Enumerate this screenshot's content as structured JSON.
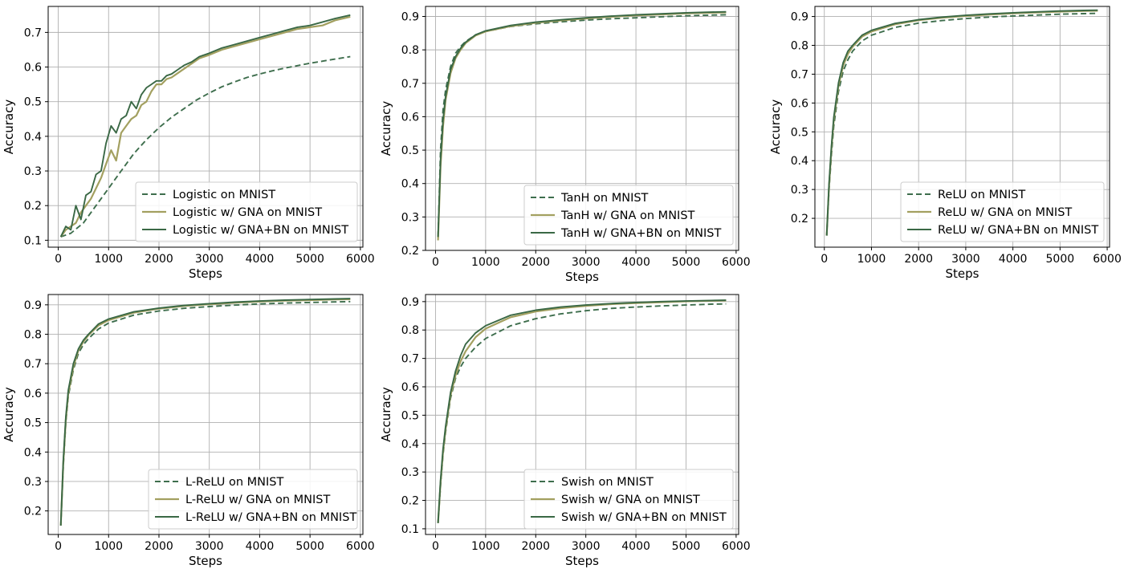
{
  "figure": {
    "colors": {
      "baseline": "#3e6e4d",
      "gna": "#a3a060",
      "gna_bn": "#3a6845",
      "grid": "#b0b0b0"
    }
  },
  "chart_data": [
    {
      "type": "line",
      "xlabel": "Steps",
      "ylabel": "Accuracy",
      "xlim": [
        -200,
        6050
      ],
      "ylim": [
        0.08,
        0.775
      ],
      "xticks": [
        0,
        1000,
        2000,
        3000,
        4000,
        5000,
        6000
      ],
      "yticks": [
        0.1,
        0.2,
        0.3,
        0.4,
        0.5,
        0.6,
        0.7
      ],
      "grid": true,
      "legend_position": "lower-right",
      "series": [
        {
          "name": "Logistic on MNIST",
          "style": "dashed",
          "color": "baseline",
          "x": [
            50,
            250,
            500,
            750,
            1000,
            1250,
            1500,
            1750,
            2000,
            2250,
            2500,
            2750,
            3000,
            3250,
            3500,
            3750,
            4000,
            4250,
            4500,
            4750,
            5000,
            5250,
            5500,
            5800
          ],
          "y": [
            0.11,
            0.12,
            0.15,
            0.2,
            0.25,
            0.3,
            0.35,
            0.39,
            0.425,
            0.455,
            0.48,
            0.505,
            0.525,
            0.543,
            0.557,
            0.57,
            0.58,
            0.589,
            0.597,
            0.604,
            0.611,
            0.617,
            0.623,
            0.63
          ]
        },
        {
          "name": "Logistic w/ GNA on MNIST",
          "style": "solid",
          "color": "gna",
          "x": [
            50,
            150,
            250,
            350,
            450,
            550,
            650,
            750,
            850,
            950,
            1050,
            1150,
            1250,
            1350,
            1450,
            1550,
            1650,
            1750,
            1850,
            1950,
            2050,
            2150,
            2250,
            2350,
            2500,
            2650,
            2800,
            3000,
            3250,
            3500,
            3750,
            4000,
            4250,
            4500,
            4750,
            5000,
            5250,
            5500,
            5800
          ],
          "y": [
            0.11,
            0.13,
            0.14,
            0.15,
            0.18,
            0.2,
            0.22,
            0.25,
            0.28,
            0.32,
            0.36,
            0.33,
            0.41,
            0.43,
            0.45,
            0.46,
            0.49,
            0.5,
            0.53,
            0.55,
            0.55,
            0.565,
            0.57,
            0.58,
            0.595,
            0.61,
            0.625,
            0.635,
            0.65,
            0.66,
            0.67,
            0.68,
            0.69,
            0.7,
            0.71,
            0.715,
            0.72,
            0.735,
            0.745
          ]
        },
        {
          "name": "Logistic w/ GNA+BN on MNIST",
          "style": "solid",
          "color": "gna_bn",
          "x": [
            50,
            150,
            250,
            350,
            450,
            550,
            650,
            750,
            850,
            950,
            1050,
            1150,
            1250,
            1350,
            1450,
            1550,
            1650,
            1750,
            1850,
            1950,
            2050,
            2150,
            2250,
            2350,
            2500,
            2650,
            2800,
            3000,
            3250,
            3500,
            3750,
            4000,
            4250,
            4500,
            4750,
            5000,
            5250,
            5500,
            5800
          ],
          "y": [
            0.11,
            0.14,
            0.13,
            0.2,
            0.16,
            0.23,
            0.24,
            0.29,
            0.3,
            0.38,
            0.43,
            0.41,
            0.45,
            0.46,
            0.5,
            0.48,
            0.52,
            0.54,
            0.55,
            0.56,
            0.56,
            0.575,
            0.58,
            0.59,
            0.605,
            0.615,
            0.63,
            0.64,
            0.655,
            0.665,
            0.675,
            0.685,
            0.695,
            0.705,
            0.715,
            0.72,
            0.73,
            0.74,
            0.75
          ]
        }
      ]
    },
    {
      "type": "line",
      "xlabel": "Steps",
      "ylabel": "Accuracy",
      "xlim": [
        -200,
        6050
      ],
      "ylim": [
        0.2,
        0.93
      ],
      "xticks": [
        0,
        1000,
        2000,
        3000,
        4000,
        5000,
        6000
      ],
      "yticks": [
        0.2,
        0.3,
        0.4,
        0.5,
        0.6,
        0.7,
        0.8,
        0.9
      ],
      "grid": true,
      "legend_position": "lower-right",
      "series": [
        {
          "name": "TanH on MNIST",
          "style": "dashed",
          "color": "baseline",
          "x": [
            50,
            100,
            150,
            200,
            300,
            400,
            500,
            600,
            800,
            1000,
            1500,
            2000,
            2500,
            3000,
            3500,
            4000,
            4500,
            5000,
            5500,
            5800
          ],
          "y": [
            0.24,
            0.5,
            0.62,
            0.68,
            0.75,
            0.79,
            0.81,
            0.825,
            0.845,
            0.855,
            0.87,
            0.878,
            0.884,
            0.889,
            0.893,
            0.896,
            0.899,
            0.902,
            0.904,
            0.905
          ]
        },
        {
          "name": "TanH w/ GNA on MNIST",
          "style": "solid",
          "color": "gna",
          "x": [
            50,
            100,
            150,
            200,
            300,
            400,
            500,
            600,
            800,
            1000,
            1500,
            2000,
            2500,
            3000,
            3500,
            4000,
            4500,
            5000,
            5500,
            5800
          ],
          "y": [
            0.23,
            0.45,
            0.57,
            0.65,
            0.73,
            0.775,
            0.8,
            0.82,
            0.843,
            0.855,
            0.871,
            0.881,
            0.888,
            0.894,
            0.899,
            0.903,
            0.906,
            0.909,
            0.911,
            0.912
          ]
        },
        {
          "name": "TanH w/ GNA+BN on MNIST",
          "style": "solid",
          "color": "gna_bn",
          "x": [
            50,
            100,
            150,
            200,
            300,
            400,
            500,
            600,
            800,
            1000,
            1500,
            2000,
            2500,
            3000,
            3500,
            4000,
            4500,
            5000,
            5500,
            5800
          ],
          "y": [
            0.24,
            0.47,
            0.59,
            0.66,
            0.74,
            0.78,
            0.805,
            0.823,
            0.845,
            0.857,
            0.873,
            0.883,
            0.89,
            0.896,
            0.901,
            0.905,
            0.908,
            0.911,
            0.913,
            0.914
          ]
        }
      ]
    },
    {
      "type": "line",
      "xlabel": "Steps",
      "ylabel": "Accuracy",
      "xlim": [
        -200,
        6050
      ],
      "ylim": [
        0.1,
        0.935
      ],
      "xticks": [
        0,
        1000,
        2000,
        3000,
        4000,
        5000,
        6000
      ],
      "yticks": [
        0.2,
        0.3,
        0.4,
        0.5,
        0.6,
        0.7,
        0.8,
        0.9
      ],
      "grid": true,
      "legend_position": "lower-right",
      "series": [
        {
          "name": "ReLU on MNIST",
          "style": "dashed",
          "color": "baseline",
          "x": [
            50,
            100,
            150,
            200,
            300,
            400,
            500,
            600,
            800,
            1000,
            1500,
            2000,
            2500,
            3000,
            3500,
            4000,
            4500,
            5000,
            5500,
            5800
          ],
          "y": [
            0.14,
            0.3,
            0.42,
            0.52,
            0.64,
            0.71,
            0.75,
            0.78,
            0.815,
            0.835,
            0.862,
            0.877,
            0.886,
            0.893,
            0.898,
            0.902,
            0.905,
            0.908,
            0.91,
            0.911
          ]
        },
        {
          "name": "ReLU w/ GNA on MNIST",
          "style": "solid",
          "color": "gna",
          "x": [
            50,
            100,
            150,
            200,
            300,
            400,
            500,
            600,
            800,
            1000,
            1500,
            2000,
            2500,
            3000,
            3500,
            4000,
            4500,
            5000,
            5500,
            5800
          ],
          "y": [
            0.14,
            0.31,
            0.44,
            0.54,
            0.66,
            0.73,
            0.77,
            0.795,
            0.83,
            0.848,
            0.873,
            0.887,
            0.896,
            0.902,
            0.907,
            0.911,
            0.914,
            0.917,
            0.919,
            0.92
          ]
        },
        {
          "name": "ReLU w/ GNA+BN on MNIST",
          "style": "solid",
          "color": "gna_bn",
          "x": [
            50,
            100,
            150,
            200,
            300,
            400,
            500,
            600,
            800,
            1000,
            1500,
            2000,
            2500,
            3000,
            3500,
            4000,
            4500,
            5000,
            5500,
            5800
          ],
          "y": [
            0.14,
            0.32,
            0.45,
            0.55,
            0.67,
            0.74,
            0.78,
            0.8,
            0.835,
            0.852,
            0.876,
            0.889,
            0.898,
            0.904,
            0.909,
            0.913,
            0.916,
            0.919,
            0.921,
            0.922
          ]
        }
      ]
    },
    {
      "type": "line",
      "xlabel": "Steps",
      "ylabel": "Accuracy",
      "xlim": [
        -200,
        6050
      ],
      "ylim": [
        0.12,
        0.935
      ],
      "xticks": [
        0,
        1000,
        2000,
        3000,
        4000,
        5000,
        6000
      ],
      "yticks": [
        0.2,
        0.3,
        0.4,
        0.5,
        0.6,
        0.7,
        0.8,
        0.9
      ],
      "grid": true,
      "legend_position": "lower-right",
      "series": [
        {
          "name": "L-ReLU on MNIST",
          "style": "dashed",
          "color": "baseline",
          "x": [
            50,
            100,
            150,
            200,
            300,
            400,
            500,
            600,
            800,
            1000,
            1500,
            2000,
            2500,
            3000,
            3500,
            4000,
            4500,
            5000,
            5500,
            5800
          ],
          "y": [
            0.15,
            0.35,
            0.5,
            0.59,
            0.68,
            0.735,
            0.765,
            0.785,
            0.818,
            0.838,
            0.865,
            0.879,
            0.888,
            0.894,
            0.899,
            0.903,
            0.906,
            0.908,
            0.91,
            0.911
          ]
        },
        {
          "name": "L-ReLU w/ GNA on MNIST",
          "style": "solid",
          "color": "gna",
          "x": [
            50,
            100,
            150,
            200,
            300,
            400,
            500,
            600,
            800,
            1000,
            1500,
            2000,
            2500,
            3000,
            3500,
            4000,
            4500,
            5000,
            5500,
            5800
          ],
          "y": [
            0.15,
            0.36,
            0.51,
            0.6,
            0.69,
            0.745,
            0.775,
            0.797,
            0.83,
            0.848,
            0.873,
            0.887,
            0.896,
            0.902,
            0.907,
            0.911,
            0.914,
            0.916,
            0.918,
            0.919
          ]
        },
        {
          "name": "L-ReLU w/ GNA+BN on MNIST",
          "style": "solid",
          "color": "gna_bn",
          "x": [
            50,
            100,
            150,
            200,
            300,
            400,
            500,
            600,
            800,
            1000,
            1500,
            2000,
            2500,
            3000,
            3500,
            4000,
            4500,
            5000,
            5500,
            5800
          ],
          "y": [
            0.15,
            0.37,
            0.52,
            0.61,
            0.7,
            0.75,
            0.78,
            0.8,
            0.835,
            0.852,
            0.876,
            0.889,
            0.898,
            0.904,
            0.909,
            0.913,
            0.916,
            0.918,
            0.92,
            0.921
          ]
        }
      ]
    },
    {
      "type": "line",
      "xlabel": "Steps",
      "ylabel": "Accuracy",
      "xlim": [
        -200,
        6050
      ],
      "ylim": [
        0.08,
        0.925
      ],
      "xticks": [
        0,
        1000,
        2000,
        3000,
        4000,
        5000,
        6000
      ],
      "yticks": [
        0.1,
        0.2,
        0.3,
        0.4,
        0.5,
        0.6,
        0.7,
        0.8,
        0.9
      ],
      "grid": true,
      "legend_position": "lower-right",
      "series": [
        {
          "name": "Swish on MNIST",
          "style": "dashed",
          "color": "baseline",
          "x": [
            50,
            100,
            150,
            200,
            300,
            400,
            500,
            600,
            800,
            1000,
            1500,
            2000,
            2500,
            3000,
            3500,
            4000,
            4500,
            5000,
            5500,
            5800
          ],
          "y": [
            0.12,
            0.25,
            0.36,
            0.44,
            0.56,
            0.63,
            0.67,
            0.7,
            0.74,
            0.77,
            0.815,
            0.84,
            0.857,
            0.868,
            0.876,
            0.881,
            0.885,
            0.888,
            0.891,
            0.892
          ]
        },
        {
          "name": "Swish w/ GNA on MNIST",
          "style": "solid",
          "color": "gna",
          "x": [
            50,
            100,
            150,
            200,
            300,
            400,
            500,
            600,
            800,
            1000,
            1500,
            2000,
            2500,
            3000,
            3500,
            4000,
            4500,
            5000,
            5500,
            5800
          ],
          "y": [
            0.12,
            0.26,
            0.37,
            0.45,
            0.57,
            0.64,
            0.69,
            0.725,
            0.775,
            0.805,
            0.845,
            0.865,
            0.877,
            0.885,
            0.891,
            0.895,
            0.898,
            0.901,
            0.903,
            0.904
          ]
        },
        {
          "name": "Swish w/ GNA+BN on MNIST",
          "style": "solid",
          "color": "gna_bn",
          "x": [
            50,
            100,
            150,
            200,
            300,
            400,
            500,
            600,
            800,
            1000,
            1500,
            2000,
            2500,
            3000,
            3500,
            4000,
            4500,
            5000,
            5500,
            5800
          ],
          "y": [
            0.12,
            0.27,
            0.38,
            0.46,
            0.58,
            0.655,
            0.71,
            0.75,
            0.79,
            0.815,
            0.852,
            0.87,
            0.881,
            0.888,
            0.893,
            0.897,
            0.9,
            0.902,
            0.904,
            0.905
          ]
        }
      ]
    }
  ]
}
